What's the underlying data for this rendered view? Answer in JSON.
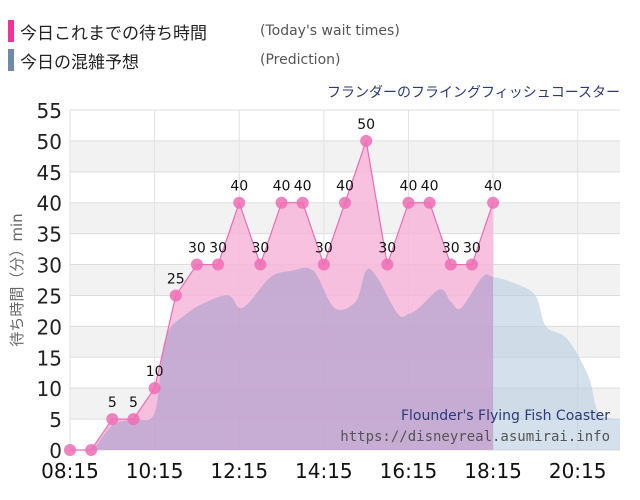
{
  "legend": {
    "actual": {
      "label": "今日これまでの待ち時間",
      "sublabel": "(Today's wait times)",
      "color": "#f0359a"
    },
    "prediction": {
      "label": "今日の混雑予想",
      "sublabel": "(Prediction)",
      "color": "#7088aa"
    }
  },
  "chart_data": {
    "type": "area",
    "title": "フランダーのフライングフィッシュコースター",
    "ylabel": "待ち時間（分）min",
    "ylim": [
      0,
      55
    ],
    "yticks": [
      0,
      5,
      10,
      15,
      20,
      25,
      30,
      35,
      40,
      45,
      50,
      55
    ],
    "xlim": [
      "08:15",
      "21:15"
    ],
    "xticks": [
      "08:15",
      "10:15",
      "12:15",
      "14:15",
      "16:15",
      "18:15",
      "20:15"
    ],
    "grid": true,
    "series": [
      {
        "name": "今日これまでの待ち時間",
        "color": "#f0359a",
        "x": [
          "08:15",
          "08:45",
          "09:15",
          "09:45",
          "10:15",
          "10:45",
          "11:15",
          "11:45",
          "12:15",
          "12:45",
          "13:15",
          "13:45",
          "14:15",
          "14:45",
          "15:15",
          "15:45",
          "16:15",
          "16:45",
          "17:15",
          "17:45",
          "18:15"
        ],
        "values": [
          0,
          0,
          5,
          5,
          10,
          25,
          30,
          30,
          40,
          30,
          40,
          40,
          30,
          40,
          50,
          30,
          40,
          40,
          30,
          30,
          40
        ]
      },
      {
        "name": "今日の混雑予想",
        "color": "#7088aa",
        "x": [
          "08:15",
          "08:45",
          "09:15",
          "09:45",
          "10:15",
          "10:30",
          "11:00",
          "11:30",
          "12:00",
          "12:15",
          "12:30",
          "13:00",
          "13:30",
          "14:00",
          "14:30",
          "15:00",
          "15:15",
          "15:30",
          "16:00",
          "16:15",
          "16:30",
          "17:00",
          "17:15",
          "17:30",
          "18:00",
          "18:15",
          "18:45",
          "19:15",
          "19:30",
          "20:00",
          "20:30",
          "20:45",
          "21:15"
        ],
        "values": [
          0,
          0,
          4,
          5,
          6,
          18,
          22,
          24,
          25,
          23,
          24,
          28,
          29,
          29,
          23,
          24,
          29,
          28,
          22,
          22,
          23,
          26,
          24,
          23,
          28,
          28,
          27,
          25,
          20,
          18,
          12,
          6,
          5
        ]
      }
    ],
    "watermark": [
      "Flounder's Flying Fish Coaster",
      "https://disneyreal.asumirai.info"
    ]
  }
}
